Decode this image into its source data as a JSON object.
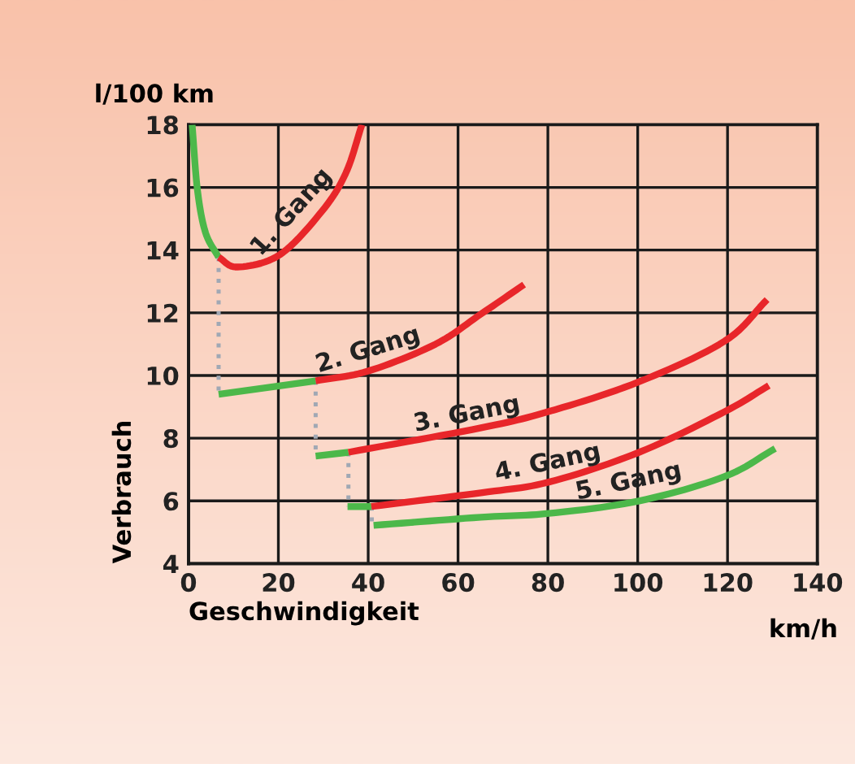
{
  "chart_data": {
    "type": "line",
    "xlabel": "Geschwindigkeit",
    "ylabel": "Verbrauch",
    "xlim": [
      0,
      140
    ],
    "ylim": [
      4,
      18
    ],
    "xticks": [
      0,
      20,
      40,
      60,
      80,
      100,
      120,
      140
    ],
    "yticks": [
      4,
      6,
      8,
      10,
      12,
      14,
      16,
      18
    ],
    "grid": true,
    "marker": "none",
    "series": [
      {
        "color": "#4cb84a",
        "x": [
          0.8,
          2.0,
          3.8,
          6.7
        ],
        "values": [
          18,
          15.9,
          14.55,
          13.77
        ]
      },
      {
        "color": "#e8262a",
        "x": [
          6.7,
          10.9,
          20.3,
          29.7,
          35.0,
          38.6
        ],
        "values": [
          13.77,
          13.46,
          13.85,
          15.24,
          16.45,
          18
        ]
      },
      {
        "color": "#4cb84a",
        "x": [
          6.7,
          28.3
        ],
        "values": [
          9.4,
          9.83
        ]
      },
      {
        "color": "#e8262a",
        "x": [
          28.3,
          40,
          55,
          65.1,
          74.7
        ],
        "values": [
          9.83,
          10.14,
          11.0,
          11.96,
          12.9
        ]
      },
      {
        "color": "#4cb84a",
        "x": [
          28.3,
          35.6
        ],
        "values": [
          7.43,
          7.55
        ]
      },
      {
        "color": "#e8262a",
        "x": [
          35.6,
          65.1,
          80.2,
          100.3,
          119.4,
          128.8
        ],
        "values": [
          7.55,
          8.33,
          8.85,
          9.8,
          11.1,
          12.42
        ]
      },
      {
        "color": "#4cb84a",
        "x": [
          35.4,
          40.7
        ],
        "values": [
          5.82,
          5.82
        ]
      },
      {
        "color": "#e8262a",
        "x": [
          40.7,
          65.1,
          80.2,
          100.3,
          119.4,
          129.2
        ],
        "values": [
          5.82,
          6.26,
          6.6,
          7.55,
          8.85,
          9.68
        ]
      },
      {
        "color": "#4cb84a",
        "x": [
          41.2,
          65.1,
          80.2,
          100.3,
          119.4,
          130.6
        ],
        "values": [
          5.22,
          5.48,
          5.6,
          6.0,
          6.78,
          7.67
        ]
      },
      {
        "color": "#a0a8b4",
        "line_style": "dotted",
        "x": [
          6.7,
          6.7
        ],
        "values": [
          13.77,
          9.4
        ]
      },
      {
        "color": "#a0a8b4",
        "line_style": "dotted",
        "x": [
          28.3,
          28.3
        ],
        "values": [
          9.83,
          7.43
        ]
      },
      {
        "color": "#a0a8b4",
        "line_style": "dotted",
        "x": [
          35.6,
          35.6
        ],
        "values": [
          7.55,
          5.82
        ]
      },
      {
        "color": "#a0a8b4",
        "line_style": "dotted",
        "x": [
          40.8,
          40.8
        ],
        "values": [
          5.82,
          5.22
        ]
      }
    ],
    "annotations": [
      "1. Gang",
      "2. Gang",
      "3. Gang",
      "4. Gang",
      "5. Gang",
      "l/100 km",
      "km/h"
    ]
  }
}
